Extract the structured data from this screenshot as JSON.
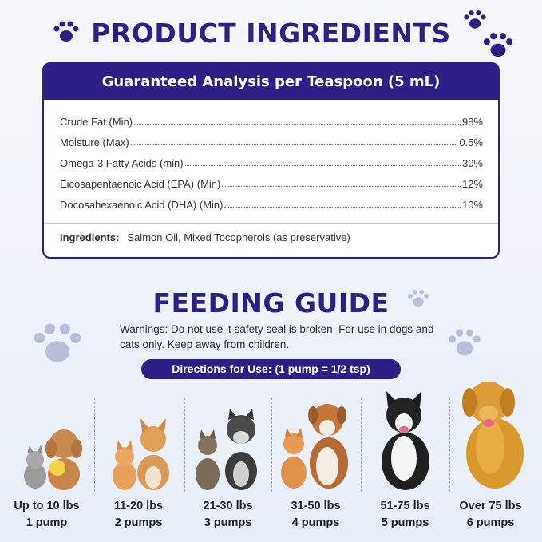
{
  "title": "PRODUCT INGREDIENTS",
  "analysis": {
    "header": "Guaranteed Analysis per Teaspoon (5 mL)",
    "rows": [
      {
        "label": "Crude Fat (Min)",
        "value": "98%"
      },
      {
        "label": "Moisture (Max)",
        "value": "0.5%"
      },
      {
        "label": "Omega-3 Fatty Acids (min)",
        "value": "30%"
      },
      {
        "label": "Eicosapentaenoic Acid (EPA) (Min)",
        "value": "12%"
      },
      {
        "label": "Docosahexaenoic Acid (DHA) (Min)",
        "value": "10%"
      }
    ],
    "ingredients_label": "Ingredients:",
    "ingredients_value": "Salmon Oil, Mixed Tocopherols (as preservative)"
  },
  "feeding": {
    "title": "FEEDING GUIDE",
    "warning": "Warnings: Do not use it safety seal is broken. For use in dogs and cats only. Keep away from children.",
    "directions": "Directions for Use: (1 pump = 1/2 tsp)",
    "columns": [
      {
        "weight": "Up to 10 lbs",
        "dose": "1 pump"
      },
      {
        "weight": "11-20 lbs",
        "dose": "2 pumps"
      },
      {
        "weight": "21-30 lbs",
        "dose": "3 pumps"
      },
      {
        "weight": "31-50 lbs",
        "dose": "4 pumps"
      },
      {
        "weight": "51-75 lbs",
        "dose": "5 pumps"
      },
      {
        "weight": "Over 75 lbs",
        "dose": "6 pumps"
      }
    ]
  },
  "colors": {
    "brand": "#2d1f86",
    "paw_dark": "#2d1f86",
    "paw_light": "#b9bdd8"
  },
  "icons": [
    "paw-icon",
    "pet-illustration"
  ]
}
